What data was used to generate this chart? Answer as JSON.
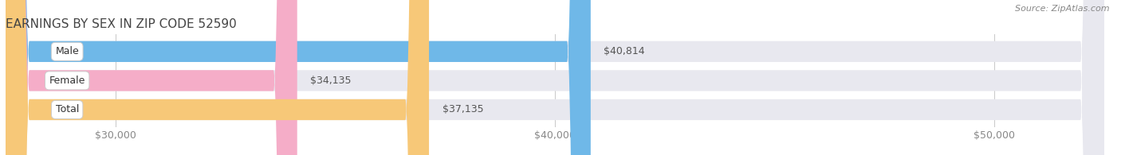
{
  "title": "EARNINGS BY SEX IN ZIP CODE 52590",
  "source": "Source: ZipAtlas.com",
  "categories": [
    "Male",
    "Female",
    "Total"
  ],
  "values": [
    40814,
    34135,
    37135
  ],
  "bar_colors": [
    "#6fb8e8",
    "#f5adc8",
    "#f7c878"
  ],
  "bar_bg_color": "#e8e8ef",
  "xlim_min": 27500,
  "xlim_max": 52500,
  "xticks": [
    30000,
    40000,
    50000
  ],
  "xtick_labels": [
    "$30,000",
    "$40,000",
    "$50,000"
  ],
  "bar_height": 0.72,
  "bg_color": "#ffffff",
  "title_fontsize": 11,
  "label_fontsize": 9,
  "value_fontsize": 9,
  "source_fontsize": 8
}
